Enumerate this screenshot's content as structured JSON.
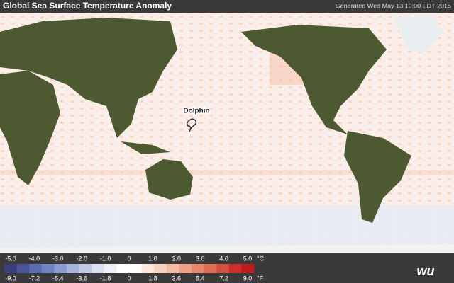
{
  "header": {
    "title": "Global Sea Surface Temperature Anomaly",
    "generated": "Generated Wed May 13 10:00 EDT 2015"
  },
  "map": {
    "storms": [
      {
        "label": "Dolphin"
      }
    ]
  },
  "legend": {
    "colors": [
      "#3a3f7a",
      "#4b5596",
      "#5d6cae",
      "#7282c0",
      "#8c9bcf",
      "#a6b3dc",
      "#c0cae7",
      "#d9e0f1",
      "#eef1f8",
      "#ffffff",
      "#ffffff",
      "#fbe7dc",
      "#f7d2c0",
      "#f2bba3",
      "#eca287",
      "#e5886d",
      "#dd6d55",
      "#d45040",
      "#c9302e",
      "#bd1a22"
    ],
    "celsius": {
      "unit": "°C",
      "ticks": [
        "-5.0",
        "-4.0",
        "-3.0",
        "-2.0",
        "-1.0",
        "0",
        "1.0",
        "2.0",
        "3.0",
        "4.0",
        "5.0"
      ]
    },
    "fahrenheit": {
      "unit": "°F",
      "ticks": [
        "-9.0",
        "-7.2",
        "-5.4",
        "-3.6",
        "-1.8",
        "0",
        "1.8",
        "3.6",
        "5.4",
        "7.2",
        "9.0"
      ]
    }
  },
  "logo": "wu"
}
